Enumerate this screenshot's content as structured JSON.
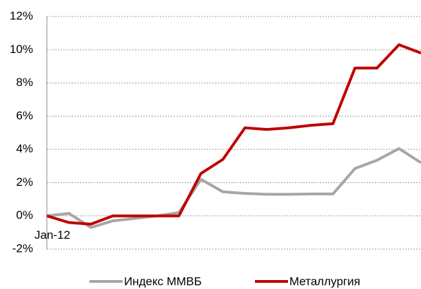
{
  "chart_data": {
    "type": "line",
    "categories": [
      "Jan-12",
      null,
      null,
      null,
      null,
      null,
      null,
      null,
      null,
      null,
      null,
      null,
      null,
      null,
      null,
      null,
      null,
      null
    ],
    "series": [
      {
        "name": "Индекс ММВБ",
        "color": "#a6a6a6",
        "values": [
          0,
          0.15,
          -0.7,
          -0.3,
          -0.15,
          0,
          0.2,
          2.2,
          1.45,
          1.35,
          1.3,
          1.3,
          1.32,
          1.32,
          2.85,
          3.35,
          4.05,
          3.2
        ]
      },
      {
        "name": "Металлургия",
        "color": "#c00000",
        "values": [
          0,
          -0.4,
          -0.5,
          0,
          0,
          0,
          0,
          2.55,
          3.4,
          5.3,
          5.2,
          5.3,
          5.45,
          5.55,
          8.9,
          8.9,
          10.3,
          9.8
        ]
      }
    ],
    "ylim": [
      -2,
      12
    ],
    "yticks": [
      {
        "value": -2,
        "label": "-2%"
      },
      {
        "value": 0,
        "label": "0%"
      },
      {
        "value": 2,
        "label": "2%"
      },
      {
        "value": 4,
        "label": "4%"
      },
      {
        "value": 6,
        "label": "6%"
      },
      {
        "value": 8,
        "label": "8%"
      },
      {
        "value": 10,
        "label": "10%"
      },
      {
        "value": 12,
        "label": "12%"
      }
    ],
    "grid": true,
    "legend": "bottom"
  }
}
